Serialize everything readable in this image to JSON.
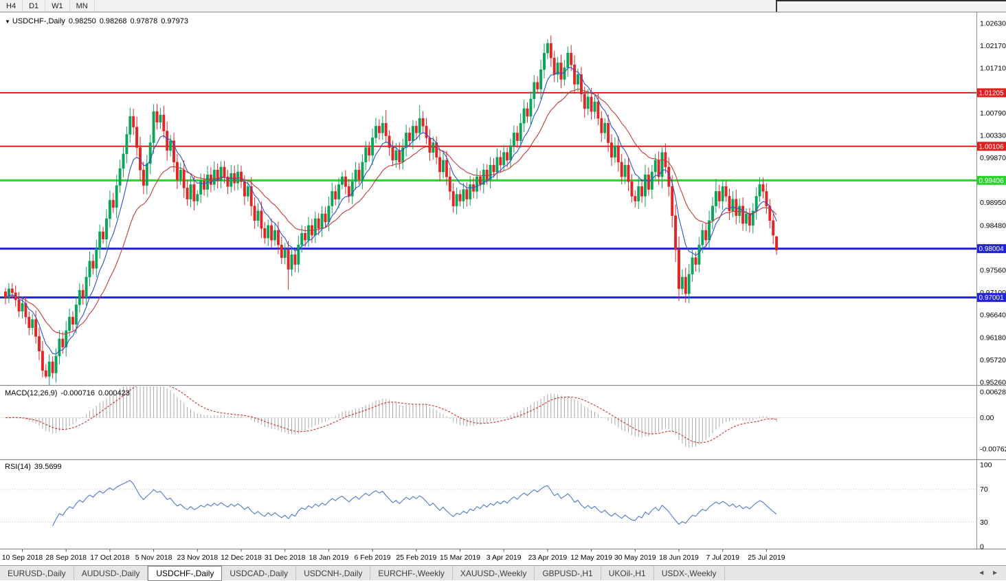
{
  "toolbar": {
    "timeframes": [
      "H4",
      "D1",
      "W1",
      "MN"
    ]
  },
  "chart": {
    "collapse_icon": "▼",
    "symbol": "USDCHF-,Daily",
    "open": "0.98250",
    "high": "0.98268",
    "low": "0.97878",
    "close": "0.97973"
  },
  "price_axis": {
    "ticks": [
      {
        "text": "1.02630",
        "price": 1.0263
      },
      {
        "text": "1.02170",
        "price": 1.0217
      },
      {
        "text": "1.01710",
        "price": 1.0171
      },
      {
        "text": "1.00790",
        "price": 1.0079
      },
      {
        "text": "1.00330",
        "price": 1.0033
      },
      {
        "text": "0.99870",
        "price": 0.9987
      },
      {
        "text": "0.98950",
        "price": 0.9895
      },
      {
        "text": "0.98480",
        "price": 0.9848
      },
      {
        "text": "0.97560",
        "price": 0.9756
      },
      {
        "text": "0.97100",
        "price": 0.971
      },
      {
        "text": "0.96640",
        "price": 0.9664
      },
      {
        "text": "0.96180",
        "price": 0.9618
      },
      {
        "text": "0.95720",
        "price": 0.9572
      },
      {
        "text": "0.95260",
        "price": 0.9526
      }
    ]
  },
  "levels": [
    {
      "label": "1.01205",
      "price": 1.01205,
      "color": "#e02020",
      "width": 2
    },
    {
      "label": "1.00106",
      "price": 1.00106,
      "color": "#e02020",
      "width": 2
    },
    {
      "label": "0.99406",
      "price": 0.99406,
      "color": "#2bd42b",
      "width": 3
    },
    {
      "label": "0.98004",
      "price": 0.98004,
      "color": "#2222dd",
      "width": 3
    },
    {
      "label": "0.97001",
      "price": 0.97001,
      "color": "#2222dd",
      "width": 3
    }
  ],
  "macd_panel": {
    "label": "MACD(12,26,9)",
    "value_main": "-0.000716",
    "value_signal": "0.000423",
    "axis": [
      {
        "text": "0.006286",
        "value": 0.006286
      },
      {
        "text": "0.00",
        "value": 0
      },
      {
        "text": "-0.00762",
        "value": -0.00762
      }
    ]
  },
  "rsi_panel": {
    "label": "RSI(14)",
    "value": "39.5699",
    "axis": [
      {
        "text": "100",
        "value": 100
      },
      {
        "text": "70",
        "value": 70
      },
      {
        "text": "30",
        "value": 30
      },
      {
        "text": "0",
        "value": 0
      }
    ]
  },
  "x_axis": {
    "labels": [
      {
        "text": "10 Sep 2018",
        "bar": 5
      },
      {
        "text": "28 Sep 2018",
        "bar": 18
      },
      {
        "text": "17 Oct 2018",
        "bar": 31
      },
      {
        "text": "5 Nov 2018",
        "bar": 44
      },
      {
        "text": "23 Nov 2018",
        "bar": 57
      },
      {
        "text": "12 Dec 2018",
        "bar": 70
      },
      {
        "text": "31 Dec 2018",
        "bar": 83
      },
      {
        "text": "18 Jan 2019",
        "bar": 96
      },
      {
        "text": "6 Feb 2019",
        "bar": 109
      },
      {
        "text": "25 Feb 2019",
        "bar": 122
      },
      {
        "text": "15 Mar 2019",
        "bar": 135
      },
      {
        "text": "3 Apr 2019",
        "bar": 148
      },
      {
        "text": "23 Apr 2019",
        "bar": 161
      },
      {
        "text": "12 May 2019",
        "bar": 174
      },
      {
        "text": "30 May 2019",
        "bar": 187
      },
      {
        "text": "18 Jun 2019",
        "bar": 200
      },
      {
        "text": "7 Jul 2019",
        "bar": 213
      },
      {
        "text": "25 Jul 2019",
        "bar": 226
      }
    ]
  },
  "tabs": {
    "scroll_left": "◄",
    "scroll_right": "►",
    "items": [
      {
        "label": "EURUSD-,Daily",
        "active": false
      },
      {
        "label": "AUDUSD-,Daily",
        "active": false
      },
      {
        "label": "USDCHF-,Daily",
        "active": true
      },
      {
        "label": "USDCAD-,Daily",
        "active": false
      },
      {
        "label": "USDCNH-,Daily",
        "active": false
      },
      {
        "label": "EURCHF-,Weekly",
        "active": false
      },
      {
        "label": "XAUUSD-,Weekly",
        "active": false
      },
      {
        "label": "GBPUSD-,H1",
        "active": false
      },
      {
        "label": "UKOil-,H1",
        "active": false
      },
      {
        "label": "USDX-,Weekly",
        "active": false
      }
    ]
  },
  "chart_data": {
    "type": "candlestick",
    "symbol": "USDCHF",
    "timeframe": "Daily",
    "bars": 230,
    "ylim": [
      0.95203,
      1.02856
    ],
    "closes": [
      0.97,
      0.9718,
      0.971,
      0.9695,
      0.9672,
      0.9688,
      0.966,
      0.9638,
      0.9655,
      0.962,
      0.959,
      0.955,
      0.9538,
      0.9568,
      0.9545,
      0.958,
      0.9615,
      0.9598,
      0.9632,
      0.966,
      0.9645,
      0.9685,
      0.9715,
      0.97,
      0.9742,
      0.9775,
      0.976,
      0.98,
      0.9835,
      0.982,
      0.9862,
      0.99,
      0.9885,
      0.993,
      0.9965,
      0.9995,
      1.0035,
      1.0072,
      1.005,
      1.0008,
      0.9962,
      0.993,
      0.9975,
      1.0018,
      1.0082,
      1.006,
      1.0075,
      1.0042,
      1.0002,
      1.0022,
      0.9978,
      0.9942,
      0.9962,
      0.9925,
      0.9902,
      0.9932,
      0.9898,
      0.9912,
      0.994,
      0.9922,
      0.9952,
      0.9932,
      0.9962,
      0.994,
      0.9968,
      0.9948,
      0.9928,
      0.9955,
      0.9935,
      0.9958,
      0.9938,
      0.9908,
      0.9928,
      0.9888,
      0.9858,
      0.9878,
      0.9842,
      0.9822,
      0.9848,
      0.9818,
      0.9838,
      0.9808,
      0.9782,
      0.9798,
      0.9758,
      0.9788,
      0.9768,
      0.9808,
      0.9832,
      0.9818,
      0.9848,
      0.9828,
      0.9862,
      0.9842,
      0.9872,
      0.9855,
      0.9888,
      0.9918,
      0.9902,
      0.9932,
      0.9948,
      0.9928,
      0.9908,
      0.9938,
      0.9962,
      0.9942,
      0.9978,
      1.0008,
      0.9992,
      1.0028,
      1.0052,
      1.0038,
      1.0058,
      1.0032,
      1.0008,
      0.9982,
      1.0002,
      0.9978,
      1.0008,
      1.0038,
      1.0022,
      1.0052,
      1.0038,
      1.0068,
      1.0052,
      1.0028,
      0.9998,
      1.0018,
      0.9988,
      0.9958,
      0.9982,
      0.9948,
      0.9918,
      0.9888,
      0.9912,
      0.9898,
      0.9922,
      0.9902,
      0.9932,
      0.9918,
      0.9948,
      0.9932,
      0.9962,
      0.9942,
      0.9972,
      0.9958,
      0.9988,
      0.9972,
      0.9998,
      0.9982,
      1.0012,
      1.0038,
      1.0022,
      1.0058,
      1.0088,
      1.0072,
      1.0108,
      1.0142,
      1.0128,
      1.0168,
      1.0202,
      1.0222,
      1.0192,
      1.0158,
      1.0182,
      1.0148,
      1.0172,
      1.0202,
      1.0178,
      1.0138,
      1.0158,
      1.0118,
      1.0088,
      1.0112,
      1.0082,
      1.0102,
      1.0068,
      1.0038,
      1.0058,
      1.0018,
      0.9988,
      1.0012,
      0.9978,
      0.9948,
      0.9972,
      0.9938,
      0.9908,
      0.9898,
      0.9928,
      0.9908,
      0.9952,
      0.9922,
      0.9958,
      0.9982,
      0.9948,
      0.9998,
      0.9968,
      0.9928,
      0.9868,
      0.9798,
      0.9718,
      0.9742,
      0.9708,
      0.9748,
      0.9782,
      0.9768,
      0.9808,
      0.9838,
      0.9818,
      0.9858,
      0.9888,
      0.9918,
      0.9898,
      0.9928,
      0.9908,
      0.9878,
      0.9902,
      0.9868,
      0.9888,
      0.9852,
      0.9872,
      0.9848,
      0.9878,
      0.9908,
      0.9932,
      0.9918,
      0.9888,
      0.9858,
      0.9828,
      0.97973
    ],
    "wick_overrides": {
      "11": {
        "low": 0.9536
      },
      "12": {
        "low": 0.9534
      },
      "44": {
        "high": 1.0097
      },
      "84": {
        "low": 0.9716
      },
      "113": {
        "high": 1.0085
      },
      "123": {
        "high": 1.0095
      },
      "161": {
        "high": 1.0231
      },
      "167": {
        "high": 1.0216
      },
      "195": {
        "high": 1.0008
      },
      "200": {
        "low": 0.9693
      },
      "211": {
        "high": 0.9944
      },
      "224": {
        "high": 0.9947
      },
      "229": {
        "open": 0.9825,
        "high": 0.98268,
        "low": 0.97878,
        "close": 0.97973
      }
    },
    "indicators": {
      "ma_fast": {
        "period": 8,
        "color": "#2e4fd0"
      },
      "ma_slow": {
        "period": 21,
        "color": "#c03a3a"
      },
      "macd": {
        "fast": 12,
        "slow": 26,
        "signal": 9,
        "ylim": [
          -0.0095,
          0.007
        ]
      },
      "rsi": {
        "period": 14,
        "levels": [
          70,
          30
        ],
        "ylim": [
          0,
          100
        ]
      }
    },
    "colors": {
      "up": "#0aa558",
      "down": "#e02525",
      "rsi": "#4d79cc",
      "macd_hist": "#a8a8a8",
      "macd_signal": "#d03030"
    }
  }
}
